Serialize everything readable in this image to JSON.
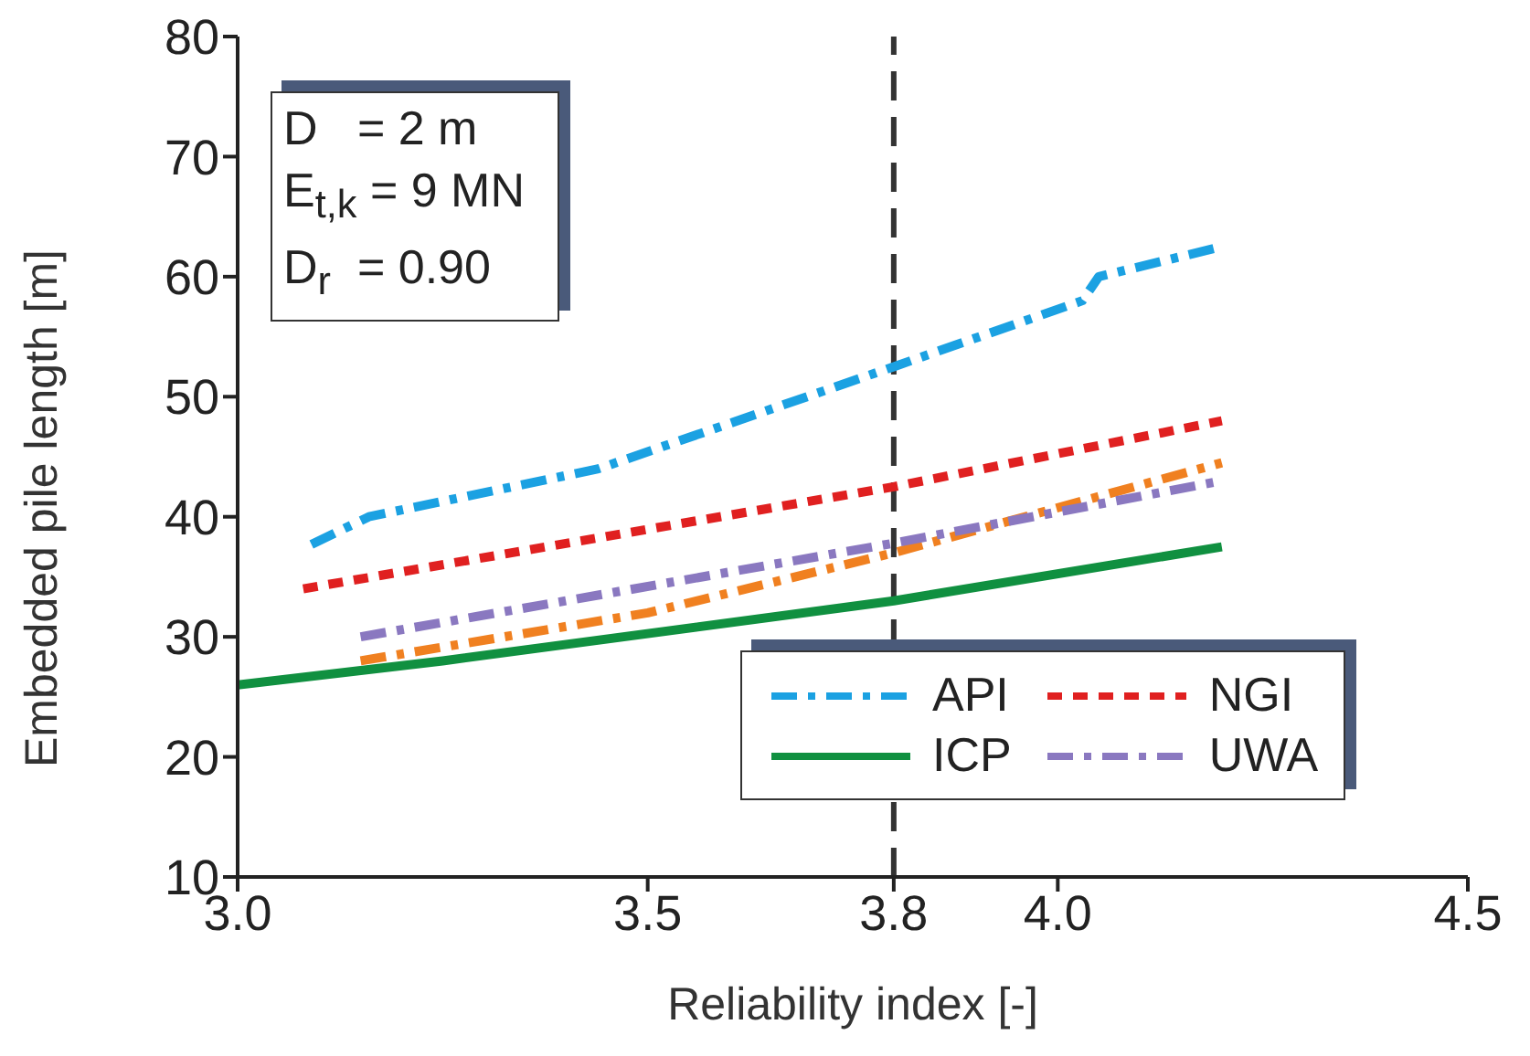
{
  "chart_data": {
    "type": "line",
    "xlabel": "Reliability index [-]",
    "ylabel": "Embedded pile length [m]",
    "xlim": [
      3.0,
      4.5
    ],
    "xticks": [
      {
        "value": 3.0,
        "label": "3.0"
      },
      3.5,
      3.8,
      {
        "value": 4.0,
        "label": "4.0"
      },
      4.5
    ],
    "ylim": [
      10,
      80
    ],
    "yticks": [
      10,
      20,
      30,
      40,
      50,
      60,
      70,
      80
    ],
    "grid": false,
    "legend": "bottom right",
    "marker": "none",
    "annotations": [
      "D   = 2 m",
      "E$_{t,k}$ = 9 MN",
      "D$_{r}$  = 0.90"
    ],
    "ref_lines": [
      {
        "axis": "x",
        "value": 3.8,
        "color": "#333333",
        "line_style": "dashed"
      }
    ],
    "series": [
      {
        "name": "API",
        "color": "#1ba1e2",
        "line_style": "dashed",
        "x": [
          3.09,
          3.16,
          3.44,
          3.8,
          4.03,
          4.05,
          4.2
        ],
        "values": [
          37.7,
          40,
          44,
          52.5,
          58,
          60,
          62.5
        ]
      },
      {
        "color": "#f08020",
        "line_style": "dashed",
        "x": [
          3.15,
          3.5,
          3.8,
          4.2
        ],
        "values": [
          28,
          32,
          37,
          44.5
        ]
      },
      {
        "name": "ICP",
        "color": "#109040",
        "line_style": "solid",
        "x": [
          3.0,
          3.25,
          3.8,
          4.2
        ],
        "values": [
          26,
          28,
          33,
          37.5
        ]
      },
      {
        "name": "NGI",
        "color": "#e02020",
        "line_style": "dotted",
        "x": [
          3.08,
          3.8,
          4.2
        ],
        "values": [
          34,
          42.5,
          48
        ]
      },
      {
        "name": "UWA",
        "color": "#8a78c0",
        "line_style": "dashed",
        "x": [
          3.15,
          3.8,
          4.2
        ],
        "values": [
          30,
          37.8,
          43
        ]
      }
    ]
  }
}
